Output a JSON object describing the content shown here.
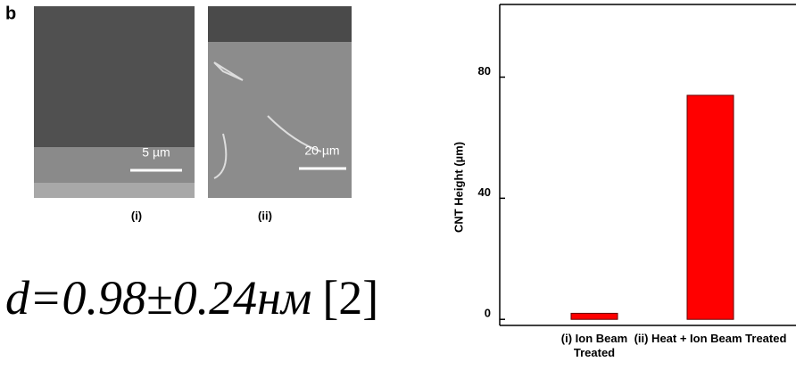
{
  "panel_label": "b",
  "images": [
    {
      "scale_label": "5 µm",
      "caption": "(i)"
    },
    {
      "scale_label": "20 µm",
      "caption": "(ii)"
    }
  ],
  "formula": "d=0.98±0.24нм",
  "citation": "[2]",
  "chart_data": {
    "type": "bar",
    "ylabel": "CNT Height (µm)",
    "categories": [
      "(i) Ion Beam Treated",
      "(ii) Heat + Ion Beam Treated"
    ],
    "values": [
      2,
      74
    ],
    "color": "#ff0000",
    "ylim": [
      -2,
      104
    ],
    "yticks": [
      0,
      40,
      80
    ]
  }
}
